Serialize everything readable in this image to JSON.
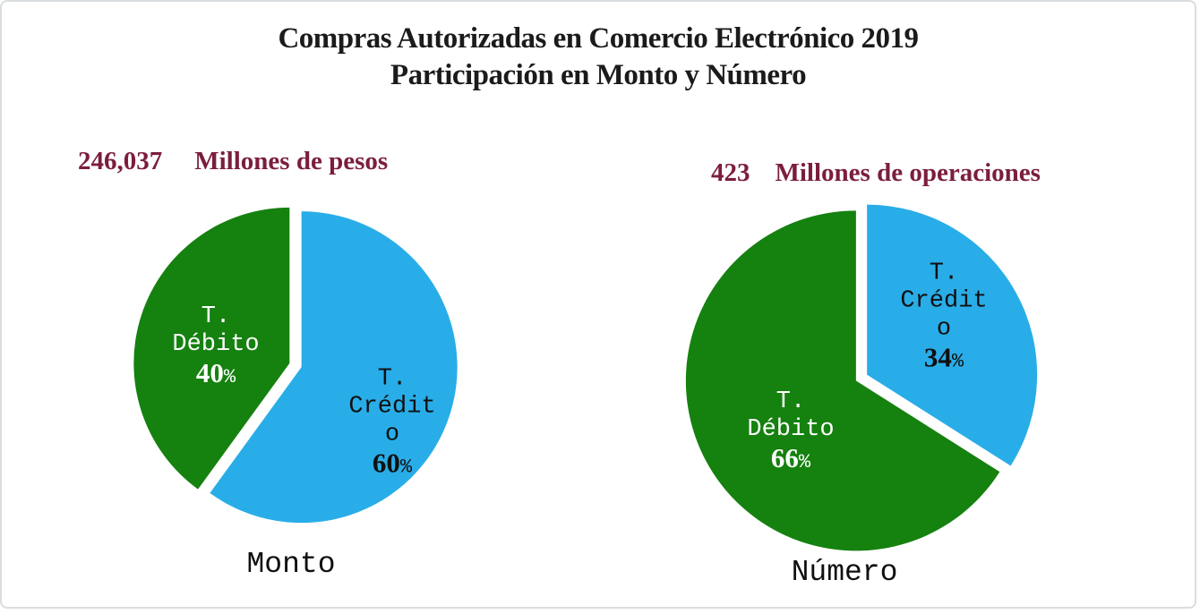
{
  "title": {
    "line1": "Compras Autorizadas en Comercio Electrónico 2019",
    "line2": "Participación en Monto y Número"
  },
  "colors": {
    "debito_green": "#15810F",
    "credito_blue": "#29ADE8",
    "annotation_maroon": "#7B1E3D",
    "title_black": "#1B1B1B",
    "background": "#FFFFFF"
  },
  "chart_data": [
    {
      "type": "pie",
      "caption": "Monto",
      "total_label": "246,037",
      "total_unit": "Millones de pesos",
      "start_angle_deg": 0,
      "direction": "clockwise",
      "legend": "none",
      "slices": [
        {
          "label": "T. Crédito",
          "value_pct": 60,
          "color": "#29ADE8",
          "label_color": "#101010",
          "display_lines": [
            "T.",
            "Crédit",
            "o"
          ],
          "pct_num": "60",
          "pct_sign": "%"
        },
        {
          "label": "T. Débito",
          "value_pct": 40,
          "color": "#15810F",
          "label_color": "#FFFFFF",
          "display_lines": [
            "T.",
            "Débito"
          ],
          "pct_num": "40",
          "pct_sign": "%"
        }
      ]
    },
    {
      "type": "pie",
      "caption": "Número",
      "total_label": "423",
      "total_unit": "Millones de operaciones",
      "start_angle_deg": 0,
      "direction": "clockwise",
      "legend": "none",
      "slices": [
        {
          "label": "T. Crédito",
          "value_pct": 34,
          "color": "#29ADE8",
          "label_color": "#101010",
          "display_lines": [
            "T.",
            "Crédit",
            "o"
          ],
          "pct_num": "34",
          "pct_sign": "%"
        },
        {
          "label": "T. Débito",
          "value_pct": 66,
          "color": "#15810F",
          "label_color": "#FFFFFF",
          "display_lines": [
            "T.",
            "Débito"
          ],
          "pct_num": "66",
          "pct_sign": "%"
        }
      ]
    }
  ]
}
